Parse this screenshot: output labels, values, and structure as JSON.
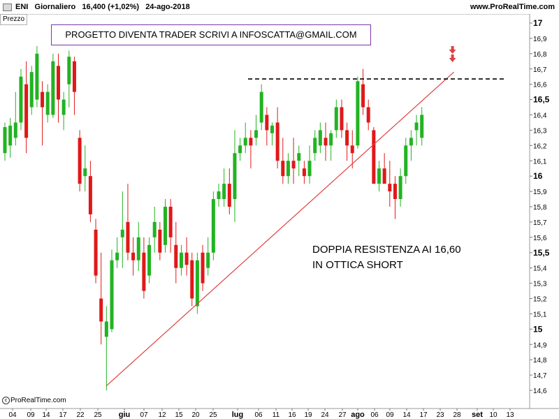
{
  "header": {
    "symbol": "ENI",
    "timeframe": "Giornaliero",
    "last_price": "16,400 (+1,02%)",
    "date": "24-ago-2018",
    "site": "www.ProRealTime.com"
  },
  "panel_label": "Prezzo",
  "note_box": "PROGETTO DIVENTA TRADER SCRIVI A INFOSCATTA@GMAIL.COM",
  "annotation": {
    "line1": "DOPPIA RESISTENZA AI 16,60",
    "line2": "IN OTTICA SHORT"
  },
  "copyright": "ProRealTime.com",
  "colors": {
    "up": "#22b322",
    "down": "#e01818",
    "trendline": "#e04040",
    "resistance": "#000000",
    "arrow": "#e04040",
    "note_border": "#7a35b0",
    "axis_bg": "#ffffff"
  },
  "chart_data": {
    "type": "candlestick",
    "y_axis": {
      "ticks": [
        "14,6",
        "14,7",
        "14,8",
        "14,9",
        "15",
        "15,1",
        "15,2",
        "15,3",
        "15,4",
        "15,5",
        "15,6",
        "15,7",
        "15,8",
        "15,9",
        "16",
        "16,1",
        "16,2",
        "16,3",
        "16,4",
        "16,5",
        "16,6",
        "16,7",
        "16,8",
        "16,9",
        "17"
      ],
      "tick_values": [
        14.6,
        14.7,
        14.8,
        14.9,
        15.0,
        15.1,
        15.2,
        15.3,
        15.4,
        15.5,
        15.6,
        15.7,
        15.8,
        15.9,
        16.0,
        16.1,
        16.2,
        16.3,
        16.4,
        16.5,
        16.6,
        16.7,
        16.8,
        16.9,
        17.0
      ],
      "bold_ticks": [
        "15",
        "15,5",
        "16",
        "16,5",
        "17"
      ],
      "range": [
        14.55,
        17.1
      ]
    },
    "x_axis": {
      "ticks": [
        "04",
        "09",
        "14",
        "17",
        "22",
        "25",
        "giu",
        "07",
        "12",
        "15",
        "20",
        "25",
        "lug",
        "06",
        "11",
        "16",
        "19",
        "24",
        "27",
        "ago",
        "06",
        "09",
        "14",
        "17",
        "23",
        "28",
        "set",
        "10",
        "13"
      ],
      "bold_ticks": [
        "giu",
        "lug",
        "ago",
        "set"
      ]
    },
    "candles": [
      {
        "o": 16.15,
        "h": 16.35,
        "l": 16.1,
        "c": 16.32
      },
      {
        "o": 16.2,
        "h": 16.38,
        "l": 16.12,
        "c": 16.33
      },
      {
        "o": 16.25,
        "h": 16.55,
        "l": 16.2,
        "c": 16.35
      },
      {
        "o": 16.35,
        "h": 16.7,
        "l": 16.3,
        "c": 16.65
      },
      {
        "o": 16.6,
        "h": 16.75,
        "l": 16.15,
        "c": 16.25
      },
      {
        "o": 16.45,
        "h": 16.72,
        "l": 16.4,
        "c": 16.68
      },
      {
        "o": 16.5,
        "h": 16.85,
        "l": 16.45,
        "c": 16.8
      },
      {
        "o": 16.55,
        "h": 16.62,
        "l": 16.2,
        "c": 16.45
      },
      {
        "o": 16.4,
        "h": 16.6,
        "l": 16.35,
        "c": 16.55
      },
      {
        "o": 16.4,
        "h": 16.8,
        "l": 16.38,
        "c": 16.75
      },
      {
        "o": 16.72,
        "h": 16.8,
        "l": 16.35,
        "c": 16.5
      },
      {
        "o": 16.4,
        "h": 16.55,
        "l": 16.3,
        "c": 16.5
      },
      {
        "o": 16.6,
        "h": 16.82,
        "l": 16.45,
        "c": 16.78
      },
      {
        "o": 16.75,
        "h": 16.78,
        "l": 16.4,
        "c": 16.55
      },
      {
        "o": 16.25,
        "h": 16.3,
        "l": 15.9,
        "c": 15.95
      },
      {
        "o": 16.0,
        "h": 16.2,
        "l": 15.9,
        "c": 16.05
      },
      {
        "o": 16.0,
        "h": 16.1,
        "l": 15.7,
        "c": 15.75
      },
      {
        "o": 15.65,
        "h": 15.72,
        "l": 15.3,
        "c": 15.35
      },
      {
        "o": 15.2,
        "h": 15.5,
        "l": 14.9,
        "c": 15.05
      },
      {
        "o": 14.95,
        "h": 15.15,
        "l": 14.6,
        "c": 15.05
      },
      {
        "o": 15.0,
        "h": 15.52,
        "l": 14.98,
        "c": 15.45
      },
      {
        "o": 15.45,
        "h": 15.6,
        "l": 15.4,
        "c": 15.5
      },
      {
        "o": 15.6,
        "h": 15.9,
        "l": 15.4,
        "c": 15.65
      },
      {
        "o": 15.7,
        "h": 15.95,
        "l": 15.45,
        "c": 15.5
      },
      {
        "o": 15.5,
        "h": 15.6,
        "l": 15.35,
        "c": 15.45
      },
      {
        "o": 15.45,
        "h": 15.7,
        "l": 15.38,
        "c": 15.6
      },
      {
        "o": 15.5,
        "h": 15.6,
        "l": 15.2,
        "c": 15.25
      },
      {
        "o": 15.35,
        "h": 15.6,
        "l": 15.3,
        "c": 15.55
      },
      {
        "o": 15.6,
        "h": 15.8,
        "l": 15.5,
        "c": 15.7
      },
      {
        "o": 15.65,
        "h": 15.7,
        "l": 15.45,
        "c": 15.5
      },
      {
        "o": 15.55,
        "h": 15.85,
        "l": 15.5,
        "c": 15.8
      },
      {
        "o": 15.8,
        "h": 15.85,
        "l": 15.5,
        "c": 15.6
      },
      {
        "o": 15.55,
        "h": 15.7,
        "l": 15.3,
        "c": 15.4
      },
      {
        "o": 15.4,
        "h": 15.55,
        "l": 15.35,
        "c": 15.5
      },
      {
        "o": 15.5,
        "h": 15.6,
        "l": 15.35,
        "c": 15.42
      },
      {
        "o": 15.45,
        "h": 15.5,
        "l": 15.15,
        "c": 15.2
      },
      {
        "o": 15.15,
        "h": 15.5,
        "l": 15.1,
        "c": 15.45
      },
      {
        "o": 15.5,
        "h": 15.55,
        "l": 15.25,
        "c": 15.3
      },
      {
        "o": 15.4,
        "h": 15.6,
        "l": 15.35,
        "c": 15.5
      },
      {
        "o": 15.5,
        "h": 15.9,
        "l": 15.45,
        "c": 15.85
      },
      {
        "o": 15.85,
        "h": 15.95,
        "l": 15.8,
        "c": 15.9
      },
      {
        "o": 15.85,
        "h": 16.05,
        "l": 15.8,
        "c": 15.95
      },
      {
        "o": 15.95,
        "h": 16.05,
        "l": 15.75,
        "c": 15.8
      },
      {
        "o": 15.85,
        "h": 16.3,
        "l": 15.7,
        "c": 16.15
      },
      {
        "o": 16.15,
        "h": 16.25,
        "l": 16.1,
        "c": 16.2
      },
      {
        "o": 16.2,
        "h": 16.35,
        "l": 16.15,
        "c": 16.25
      },
      {
        "o": 16.25,
        "h": 16.3,
        "l": 16.05,
        "c": 16.2
      },
      {
        "o": 16.25,
        "h": 16.4,
        "l": 16.2,
        "c": 16.3
      },
      {
        "o": 16.35,
        "h": 16.6,
        "l": 16.3,
        "c": 16.55
      },
      {
        "o": 16.4,
        "h": 16.45,
        "l": 16.2,
        "c": 16.3
      },
      {
        "o": 16.28,
        "h": 16.35,
        "l": 16.2,
        "c": 16.33
      },
      {
        "o": 16.35,
        "h": 16.45,
        "l": 16.05,
        "c": 16.1
      },
      {
        "o": 16.1,
        "h": 16.25,
        "l": 15.95,
        "c": 16.0
      },
      {
        "o": 16.0,
        "h": 16.15,
        "l": 15.95,
        "c": 16.1
      },
      {
        "o": 16.1,
        "h": 16.25,
        "l": 15.95,
        "c": 16.05
      },
      {
        "o": 16.1,
        "h": 16.2,
        "l": 16.0,
        "c": 16.15
      },
      {
        "o": 16.05,
        "h": 16.1,
        "l": 15.95,
        "c": 16.0
      },
      {
        "o": 16.0,
        "h": 16.2,
        "l": 15.95,
        "c": 16.1
      },
      {
        "o": 16.15,
        "h": 16.3,
        "l": 16.1,
        "c": 16.25
      },
      {
        "o": 16.2,
        "h": 16.35,
        "l": 16.15,
        "c": 16.3
      },
      {
        "o": 16.25,
        "h": 16.35,
        "l": 16.1,
        "c": 16.2
      },
      {
        "o": 16.2,
        "h": 16.3,
        "l": 16.1,
        "c": 16.28
      },
      {
        "o": 16.3,
        "h": 16.5,
        "l": 16.25,
        "c": 16.45
      },
      {
        "o": 16.45,
        "h": 16.5,
        "l": 16.25,
        "c": 16.3
      },
      {
        "o": 16.3,
        "h": 16.35,
        "l": 16.1,
        "c": 16.2
      },
      {
        "o": 16.2,
        "h": 16.3,
        "l": 16.05,
        "c": 16.15
      },
      {
        "o": 16.2,
        "h": 16.65,
        "l": 16.18,
        "c": 16.62
      },
      {
        "o": 16.6,
        "h": 16.7,
        "l": 16.4,
        "c": 16.45
      },
      {
        "o": 16.45,
        "h": 16.5,
        "l": 16.3,
        "c": 16.35
      },
      {
        "o": 16.3,
        "h": 16.32,
        "l": 15.95,
        "c": 15.95
      },
      {
        "o": 15.95,
        "h": 16.1,
        "l": 15.9,
        "c": 16.05
      },
      {
        "o": 16.05,
        "h": 16.15,
        "l": 15.95,
        "c": 15.95
      },
      {
        "o": 15.95,
        "h": 16.1,
        "l": 15.8,
        "c": 15.9
      },
      {
        "o": 15.95,
        "h": 16.0,
        "l": 15.72,
        "c": 15.85
      },
      {
        "o": 15.85,
        "h": 16.05,
        "l": 15.8,
        "c": 16.0
      },
      {
        "o": 16.0,
        "h": 16.25,
        "l": 15.95,
        "c": 16.2
      },
      {
        "o": 16.2,
        "h": 16.3,
        "l": 16.1,
        "c": 16.25
      },
      {
        "o": 16.3,
        "h": 16.4,
        "l": 16.2,
        "c": 16.35
      },
      {
        "o": 16.25,
        "h": 16.45,
        "l": 16.2,
        "c": 16.4
      }
    ],
    "resistance_level": 16.63,
    "trendline": {
      "from_index": 19,
      "from_value": 14.63,
      "to_index": 84,
      "to_value": 16.68
    },
    "arrows_at_index": 84
  }
}
